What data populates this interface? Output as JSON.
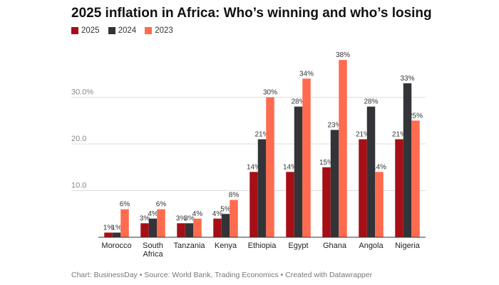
{
  "chart_data": {
    "type": "bar",
    "title": "2025 inflation in Africa: Who’s winning and who’s losing",
    "categories": [
      "Morocco",
      "South Africa",
      "Tanzania",
      "Kenya",
      "Ethiopia",
      "Egypt",
      "Ghana",
      "Angola",
      "Nigeria"
    ],
    "series": [
      {
        "name": "2025",
        "color": "#a50f15",
        "values": [
          1,
          3,
          3,
          4,
          14,
          14,
          15,
          21,
          21
        ],
        "labels": [
          "1%",
          "3%",
          "3%",
          "4%",
          "14%",
          "14%",
          "15%",
          "21%",
          "21%"
        ]
      },
      {
        "name": "2024",
        "color": "#333438",
        "values": [
          1,
          4,
          3,
          5,
          21,
          28,
          23,
          28,
          33
        ],
        "labels": [
          "1%",
          "4%",
          "3%",
          "5%",
          "21%",
          "28%",
          "23%",
          "28%",
          "33%"
        ]
      },
      {
        "name": "2023",
        "color": "#ff6b4e",
        "values": [
          6,
          6,
          4,
          8,
          30,
          34,
          38,
          14,
          25
        ],
        "labels": [
          "6%",
          "6%",
          "4%",
          "8%",
          "30%",
          "34%",
          "38%",
          "14%",
          "25%"
        ]
      }
    ],
    "yticks": [
      10,
      20,
      30
    ],
    "ytick_labels": [
      "10.0",
      "20.0",
      "30.0%"
    ],
    "ylim": [
      0,
      40
    ],
    "grid": true,
    "legend_position": "top-left"
  },
  "footer": "Chart: BusinessDay • Source: World Bank, Trading Economics • Created with Datawrapper"
}
